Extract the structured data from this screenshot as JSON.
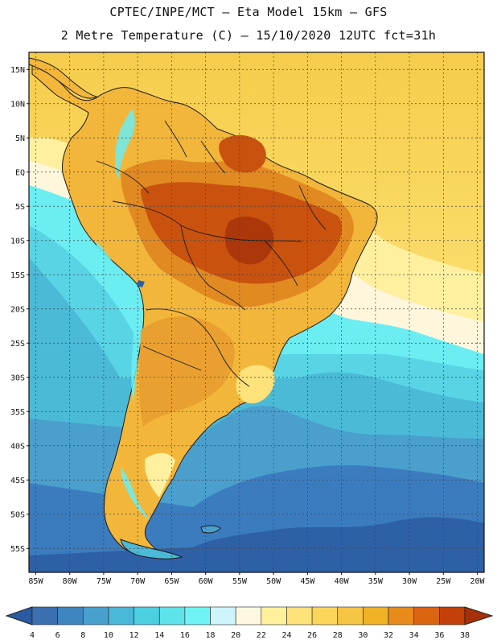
{
  "header": {
    "line1": "CPTEC/INPE/MCT –  Eta Model 15km – GFS",
    "line2": "2 Metre Temperature (C) – 15/10/2020 12UTC fct=31h"
  },
  "map": {
    "lat_labels": [
      "15N",
      "10N",
      "5N",
      "EQ",
      "5S",
      "10S",
      "15S",
      "20S",
      "25S",
      "30S",
      "35S",
      "40S",
      "45S",
      "50S",
      "55S"
    ],
    "lat_values": [
      15,
      10,
      5,
      0,
      -5,
      -10,
      -15,
      -20,
      -25,
      -30,
      -35,
      -40,
      -45,
      -50,
      -55
    ],
    "lon_labels": [
      "85W",
      "80W",
      "75W",
      "70W",
      "65W",
      "60W",
      "55W",
      "50W",
      "45W",
      "40W",
      "35W",
      "30W",
      "25W",
      "20W"
    ],
    "lon_values": [
      -85,
      -80,
      -75,
      -70,
      -65,
      -60,
      -55,
      -50,
      -45,
      -40,
      -35,
      -30,
      -25,
      -20
    ],
    "lon_range": [
      -86,
      -19
    ],
    "lat_range": [
      -58.5,
      17.5
    ]
  },
  "colorbar": {
    "ticks": [
      "4",
      "6",
      "8",
      "10",
      "12",
      "14",
      "16",
      "18",
      "20",
      "22",
      "24",
      "26",
      "28",
      "30",
      "32",
      "34",
      "36",
      "38"
    ],
    "colors": [
      "#3a6fb0",
      "#3f86c0",
      "#48a0cf",
      "#4ab8d8",
      "#4ccfe0",
      "#5fe3ea",
      "#6ff3f5",
      "#cdf5fb",
      "#fff8e1",
      "#fff19b",
      "#ffe27a",
      "#fbd55a",
      "#f5c543",
      "#f0b125",
      "#e98b1a",
      "#db6410",
      "#c4400a"
    ],
    "low_color": "#2b5aa0",
    "high_color": "#a5300a"
  }
}
